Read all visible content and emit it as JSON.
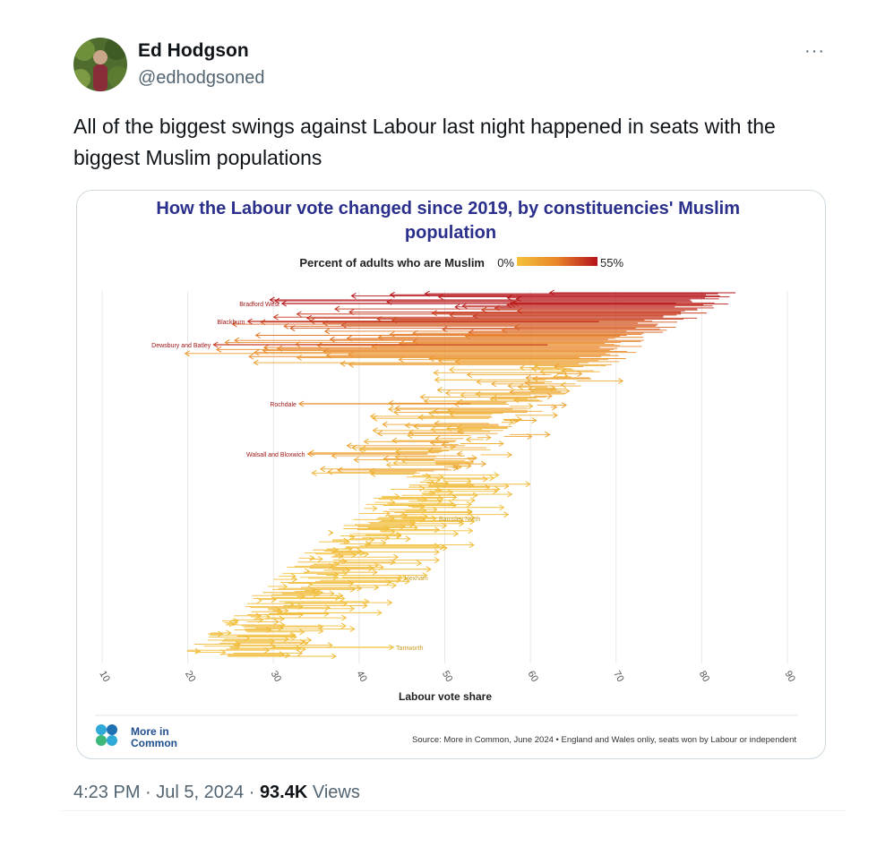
{
  "tweet": {
    "author_name": "Ed Hodgson",
    "author_handle": "@edhodgsoned",
    "more_icon": "···",
    "text": "All of the biggest swings against Labour last night happened in seats with the biggest Muslim populations",
    "time": "4:23 PM",
    "separator": "·",
    "date": "Jul 5, 2024",
    "views_count": "93.4K",
    "views_label": "Views"
  },
  "colors": {
    "title": "#2a2f8c",
    "low": "#f2c13a",
    "mid": "#e8852a",
    "high": "#b5121b",
    "grid": "#e6e6e6"
  },
  "chart_data": {
    "type": "arrow",
    "title": "How the Labour vote changed since 2019, by constituencies' Muslim population",
    "legend": {
      "label": "Percent of adults who are Muslim",
      "min_label": "0%",
      "max_label": "55%"
    },
    "xlabel": "Labour vote share",
    "xlim": [
      10,
      90
    ],
    "xticks": [
      "10",
      "20",
      "30",
      "40",
      "50",
      "60",
      "70",
      "80",
      "90"
    ],
    "grid": true,
    "source": "Source: More in Common, June 2024 • England and Wales onliy, seats won by Labour or independent",
    "logo_text_1": "More in",
    "logo_text_2": "Common",
    "labeled_seats": [
      {
        "name": "Bradford West",
        "from": 77,
        "to": 31,
        "muslim": 55
      },
      {
        "name": "Blackburn",
        "from": 68,
        "to": 27,
        "muslim": 50
      },
      {
        "name": "Dewsbury and Batley",
        "from": 62,
        "to": 23,
        "muslim": 45
      },
      {
        "name": "Rochdale",
        "from": 53,
        "to": 33,
        "muslim": 25
      },
      {
        "name": "Walsall and Bloxwich",
        "from": 48,
        "to": 34,
        "muslim": 20
      },
      {
        "name": "Barnsley North",
        "from": 45,
        "to": 49,
        "muslim": 1
      },
      {
        "name": "Hexham",
        "from": 38,
        "to": 45,
        "muslim": 1
      },
      {
        "name": "Tamworth",
        "from": 30,
        "to": 44,
        "muslim": 1
      }
    ]
  }
}
